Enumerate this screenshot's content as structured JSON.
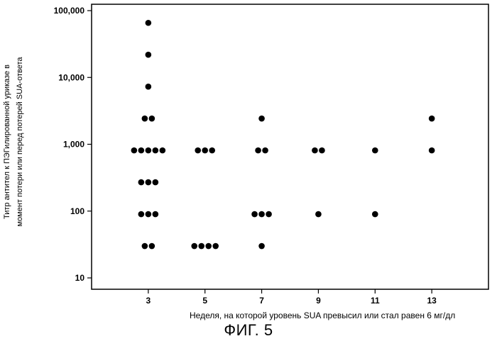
{
  "chart_data": {
    "type": "scatter",
    "ylabel_lines": [
      "Титр антител к ПЭГилированной уриказе в",
      "момент потери или перед потерей SUA-ответа"
    ],
    "xlabel": "Неделя, на которой уровень SUA превысил или стал равен 6 мг/дл",
    "y_scale": "log",
    "ylim": [
      10,
      100000
    ],
    "yticks": [
      10,
      100,
      1000,
      10000,
      100000
    ],
    "ytick_labels": [
      "10",
      "100",
      "1,000",
      "10,000",
      "100,000"
    ],
    "xticks": [
      3,
      5,
      7,
      9,
      11,
      13
    ],
    "xtick_labels": [
      "3",
      "5",
      "7",
      "9",
      "11",
      "13"
    ],
    "xlim": [
      1,
      15
    ],
    "grid": false,
    "legend": "none",
    "marker_color": "#000000",
    "points": [
      {
        "x": 3,
        "y": 65610,
        "n": 1
      },
      {
        "x": 3,
        "y": 21870,
        "n": 1
      },
      {
        "x": 3,
        "y": 7290,
        "n": 1
      },
      {
        "x": 3,
        "y": 2430,
        "n": 2
      },
      {
        "x": 3,
        "y": 810,
        "n": 5
      },
      {
        "x": 3,
        "y": 270,
        "n": 3
      },
      {
        "x": 3,
        "y": 90,
        "n": 3
      },
      {
        "x": 3,
        "y": 30,
        "n": 2
      },
      {
        "x": 5,
        "y": 810,
        "n": 3
      },
      {
        "x": 5,
        "y": 30,
        "n": 4
      },
      {
        "x": 7,
        "y": 2430,
        "n": 1
      },
      {
        "x": 7,
        "y": 810,
        "n": 2
      },
      {
        "x": 7,
        "y": 90,
        "n": 3
      },
      {
        "x": 7,
        "y": 30,
        "n": 1
      },
      {
        "x": 9,
        "y": 810,
        "n": 2
      },
      {
        "x": 9,
        "y": 90,
        "n": 1
      },
      {
        "x": 11,
        "y": 810,
        "n": 1
      },
      {
        "x": 11,
        "y": 90,
        "n": 1
      },
      {
        "x": 13,
        "y": 2430,
        "n": 1
      },
      {
        "x": 13,
        "y": 810,
        "n": 1
      }
    ]
  },
  "figure_caption": "ФИГ. 5"
}
